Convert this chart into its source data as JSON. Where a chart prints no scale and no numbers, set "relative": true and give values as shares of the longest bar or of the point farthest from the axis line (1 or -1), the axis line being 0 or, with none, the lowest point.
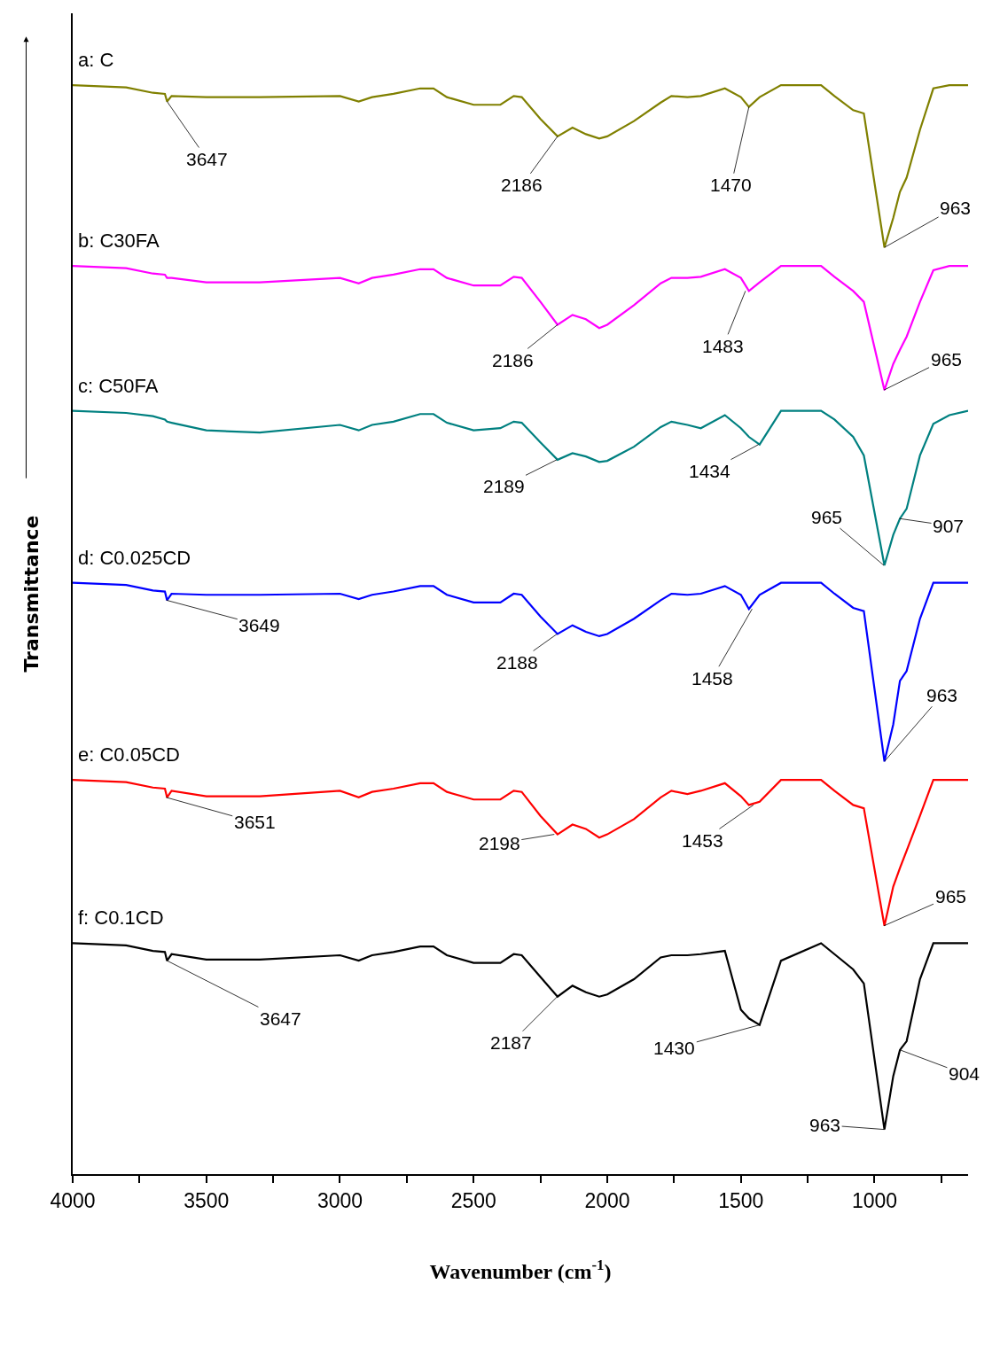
{
  "chart_data": {
    "type": "line",
    "relative": true,
    "xlabel": "Wavenumber (cm$^{-1}$)",
    "ylabel": "Transmittance",
    "x": [
      4000,
      3800,
      3700,
      3655,
      3647,
      3630,
      3500,
      3300,
      3000,
      2930,
      2880,
      2800,
      2700,
      2650,
      2600,
      2500,
      2400,
      2350,
      2320,
      2250,
      2186,
      2130,
      2080,
      2030,
      2000,
      1900,
      1800,
      1760,
      1700,
      1650,
      1560,
      1500,
      1470,
      1430,
      1350,
      1200,
      1150,
      1080,
      1040,
      963,
      930,
      905,
      880,
      830,
      780,
      720,
      650
    ],
    "xlim": [
      4000,
      650
    ],
    "xticks": [
      4000,
      {
        "value": 3750,
        "label": null
      },
      3500,
      {
        "value": 3250,
        "label": null
      },
      3000,
      {
        "value": 2750,
        "label": null
      },
      2500,
      {
        "value": 2250,
        "label": null
      },
      2000,
      {
        "value": 1750,
        "label": null
      },
      1500,
      {
        "value": 1250,
        "label": null
      },
      1000,
      {
        "value": 750,
        "label": null
      }
    ],
    "legend": false,
    "marker": "none",
    "line_style": "solid",
    "series": [
      {
        "name": "a: C",
        "color": "#808000",
        "values": [
          1.0,
          0.998,
          0.993,
          0.992,
          0.985,
          0.99,
          0.989,
          0.989,
          0.99,
          0.985,
          0.989,
          0.992,
          0.997,
          0.997,
          0.989,
          0.982,
          0.982,
          0.99,
          0.989,
          0.969,
          0.953,
          0.961,
          0.955,
          0.951,
          0.953,
          0.967,
          0.984,
          0.99,
          0.989,
          0.99,
          0.997,
          0.989,
          0.98,
          0.989,
          1.0,
          1.0,
          0.99,
          0.977,
          0.974,
          0.851,
          0.878,
          0.902,
          0.915,
          0.959,
          0.997,
          1.0,
          1.0
        ]
      },
      {
        "name": "b: C30FA",
        "color": "#ff00ff",
        "values": [
          0.834,
          0.832,
          0.827,
          0.826,
          0.823,
          0.823,
          0.819,
          0.819,
          0.823,
          0.818,
          0.823,
          0.826,
          0.831,
          0.831,
          0.823,
          0.816,
          0.816,
          0.824,
          0.823,
          0.801,
          0.78,
          0.789,
          0.785,
          0.777,
          0.78,
          0.798,
          0.818,
          0.823,
          0.823,
          0.824,
          0.831,
          0.823,
          0.811,
          0.819,
          0.834,
          0.834,
          0.824,
          0.811,
          0.801,
          0.72,
          0.744,
          0.757,
          0.769,
          0.801,
          0.83,
          0.834,
          0.834
        ]
      },
      {
        "name": "c: C50FA",
        "color": "#008080",
        "values": [
          0.701,
          0.699,
          0.696,
          0.693,
          0.691,
          0.69,
          0.683,
          0.681,
          0.688,
          0.683,
          0.688,
          0.691,
          0.698,
          0.698,
          0.69,
          0.683,
          0.685,
          0.691,
          0.69,
          0.672,
          0.656,
          0.662,
          0.659,
          0.654,
          0.655,
          0.668,
          0.686,
          0.691,
          0.688,
          0.685,
          0.697,
          0.685,
          0.677,
          0.67,
          0.701,
          0.701,
          0.693,
          0.677,
          0.66,
          0.559,
          0.587,
          0.602,
          0.611,
          0.66,
          0.689,
          0.697,
          0.701
        ]
      },
      {
        "name": "d: C0.025CD",
        "color": "#0000ff",
        "values": [
          0.543,
          0.541,
          0.536,
          0.535,
          0.527,
          0.533,
          0.532,
          0.532,
          0.533,
          0.528,
          0.532,
          0.535,
          0.54,
          0.54,
          0.532,
          0.525,
          0.525,
          0.533,
          0.532,
          0.512,
          0.496,
          0.504,
          0.498,
          0.494,
          0.496,
          0.51,
          0.527,
          0.533,
          0.532,
          0.533,
          0.54,
          0.532,
          0.519,
          0.532,
          0.543,
          0.543,
          0.533,
          0.52,
          0.517,
          0.379,
          0.413,
          0.453,
          0.462,
          0.51,
          0.543,
          0.543,
          0.543
        ]
      },
      {
        "name": "e: C0.05CD",
        "color": "#ff0000",
        "values": [
          0.362,
          0.36,
          0.355,
          0.354,
          0.346,
          0.352,
          0.347,
          0.347,
          0.352,
          0.346,
          0.351,
          0.354,
          0.359,
          0.359,
          0.351,
          0.344,
          0.344,
          0.352,
          0.351,
          0.329,
          0.312,
          0.321,
          0.317,
          0.309,
          0.312,
          0.326,
          0.346,
          0.352,
          0.349,
          0.352,
          0.359,
          0.347,
          0.339,
          0.342,
          0.362,
          0.362,
          0.352,
          0.339,
          0.336,
          0.228,
          0.264,
          0.281,
          0.297,
          0.329,
          0.362,
          0.362,
          0.362
        ]
      },
      {
        "name": "f: C0.1CD",
        "color": "#000000",
        "values": [
          0.212,
          0.21,
          0.205,
          0.204,
          0.196,
          0.202,
          0.197,
          0.197,
          0.201,
          0.196,
          0.201,
          0.204,
          0.209,
          0.209,
          0.201,
          0.194,
          0.194,
          0.202,
          0.201,
          0.181,
          0.163,
          0.173,
          0.167,
          0.163,
          0.165,
          0.179,
          0.199,
          0.201,
          0.201,
          0.202,
          0.205,
          0.151,
          0.143,
          0.137,
          0.196,
          0.212,
          0.202,
          0.188,
          0.175,
          0.041,
          0.09,
          0.114,
          0.122,
          0.179,
          0.212,
          0.212,
          0.212
        ]
      }
    ],
    "annotations": [
      {
        "text": "3647",
        "x": 3647,
        "y": 0.985
      },
      {
        "text": "2186",
        "x": 2186,
        "y": 0.953
      },
      {
        "text": "1470",
        "x": 1470,
        "y": 0.98
      },
      {
        "text": "963",
        "x": 963,
        "y": 0.851
      },
      {
        "text": "2186",
        "x": 2186,
        "y": 0.78
      },
      {
        "text": "1483",
        "x": 1483,
        "y": 0.811
      },
      {
        "text": "965",
        "x": 965,
        "y": 0.72
      },
      {
        "text": "2189",
        "x": 2189,
        "y": 0.656
      },
      {
        "text": "1434",
        "x": 1434,
        "y": 0.67
      },
      {
        "text": "965",
        "x": 965,
        "y": 0.559
      },
      {
        "text": "907",
        "x": 907,
        "y": 0.602
      },
      {
        "text": "3649",
        "x": 3649,
        "y": 0.527
      },
      {
        "text": "2188",
        "x": 2188,
        "y": 0.496
      },
      {
        "text": "1458",
        "x": 1458,
        "y": 0.519
      },
      {
        "text": "963",
        "x": 963,
        "y": 0.379
      },
      {
        "text": "3651",
        "x": 3651,
        "y": 0.346
      },
      {
        "text": "2198",
        "x": 2198,
        "y": 0.312
      },
      {
        "text": "1453",
        "x": 1453,
        "y": 0.339
      },
      {
        "text": "965",
        "x": 965,
        "y": 0.228
      },
      {
        "text": "3647",
        "x": 3647,
        "y": 0.196
      },
      {
        "text": "2187",
        "x": 2187,
        "y": 0.163
      },
      {
        "text": "1430",
        "x": 1430,
        "y": 0.137
      },
      {
        "text": "963",
        "x": 963,
        "y": 0.041
      },
      {
        "text": "904",
        "x": 904,
        "y": 0.114
      }
    ]
  }
}
